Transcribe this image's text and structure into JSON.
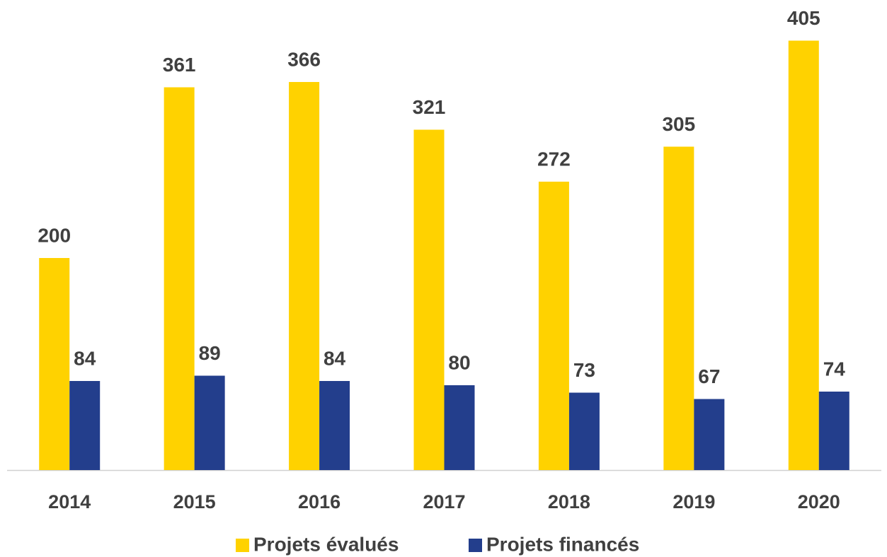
{
  "chart_data": {
    "type": "bar",
    "categories": [
      "2014",
      "2015",
      "2016",
      "2017",
      "2018",
      "2019",
      "2020"
    ],
    "series": [
      {
        "name": "Projets évalués",
        "color": "#FFD200",
        "values": [
          200,
          361,
          366,
          321,
          272,
          305,
          405
        ]
      },
      {
        "name": "Projets financés",
        "color": "#233E8C",
        "values": [
          84,
          89,
          84,
          80,
          73,
          67,
          74
        ]
      }
    ],
    "legend": "bottom"
  }
}
